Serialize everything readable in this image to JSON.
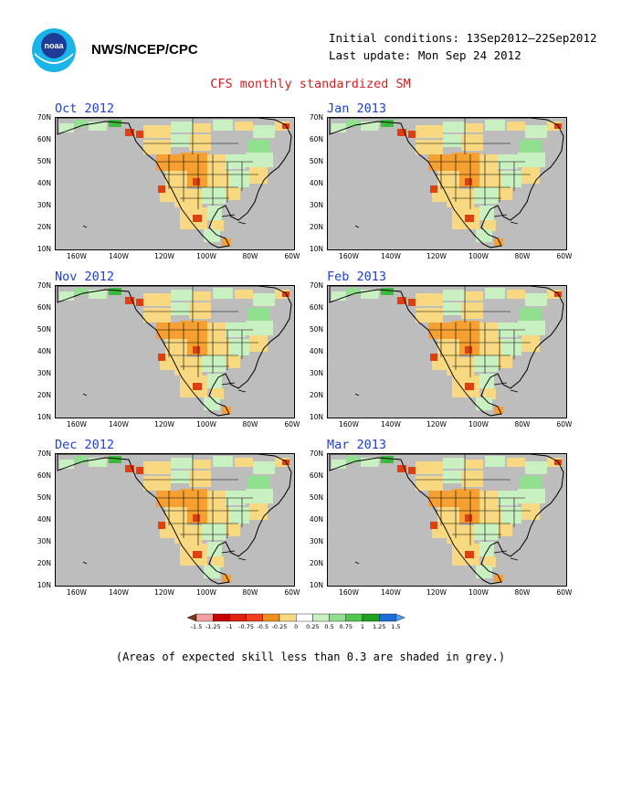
{
  "header": {
    "logo_text": "noaa",
    "agency": "NWS/NCEP/CPC",
    "initial_conditions": "Initial conditions: 13Sep2012–22Sep2012",
    "last_update": "Last update: Mon Sep 24 2012",
    "title": "CFS monthly standardized SM"
  },
  "axes": {
    "lat_labels": [
      "70N",
      "60N",
      "50N",
      "40N",
      "30N",
      "20N",
      "10N"
    ],
    "lon_labels": [
      "160W",
      "140W",
      "120W",
      "100W",
      "80W",
      "60W"
    ]
  },
  "panels": [
    {
      "month": "Oct 2012"
    },
    {
      "month": "Jan 2013"
    },
    {
      "month": "Nov 2012"
    },
    {
      "month": "Feb 2013"
    },
    {
      "month": "Dec 2012"
    },
    {
      "month": "Mar 2013"
    }
  ],
  "colorbar": {
    "labels": [
      "-1.5",
      "-1.25",
      "-1",
      "-0.75",
      "-0.5",
      "-0.25",
      "0",
      "0.25",
      "0.5",
      "0.75",
      "1",
      "1.25",
      "1.5"
    ],
    "colors": [
      "#7a3a1c",
      "#f0a0a0",
      "#c80000",
      "#e02010",
      "#f04020",
      "#f09020",
      "#f8d880",
      "#ffffff",
      "#c8f0c0",
      "#90e090",
      "#50c850",
      "#20a020",
      "#1e6ed8",
      "#4aa0f0"
    ]
  },
  "colors": {
    "no_skill": "#bdbdbd",
    "dry_light": "#f8d880",
    "dry_med": "#f5a030",
    "dry_strong": "#e04010",
    "wet_light": "#c8f0c0",
    "wet_med": "#90e090",
    "wet_strong": "#40b840"
  },
  "footnote": "(Areas of expected skill less than 0.3 are shaded in grey.)"
}
